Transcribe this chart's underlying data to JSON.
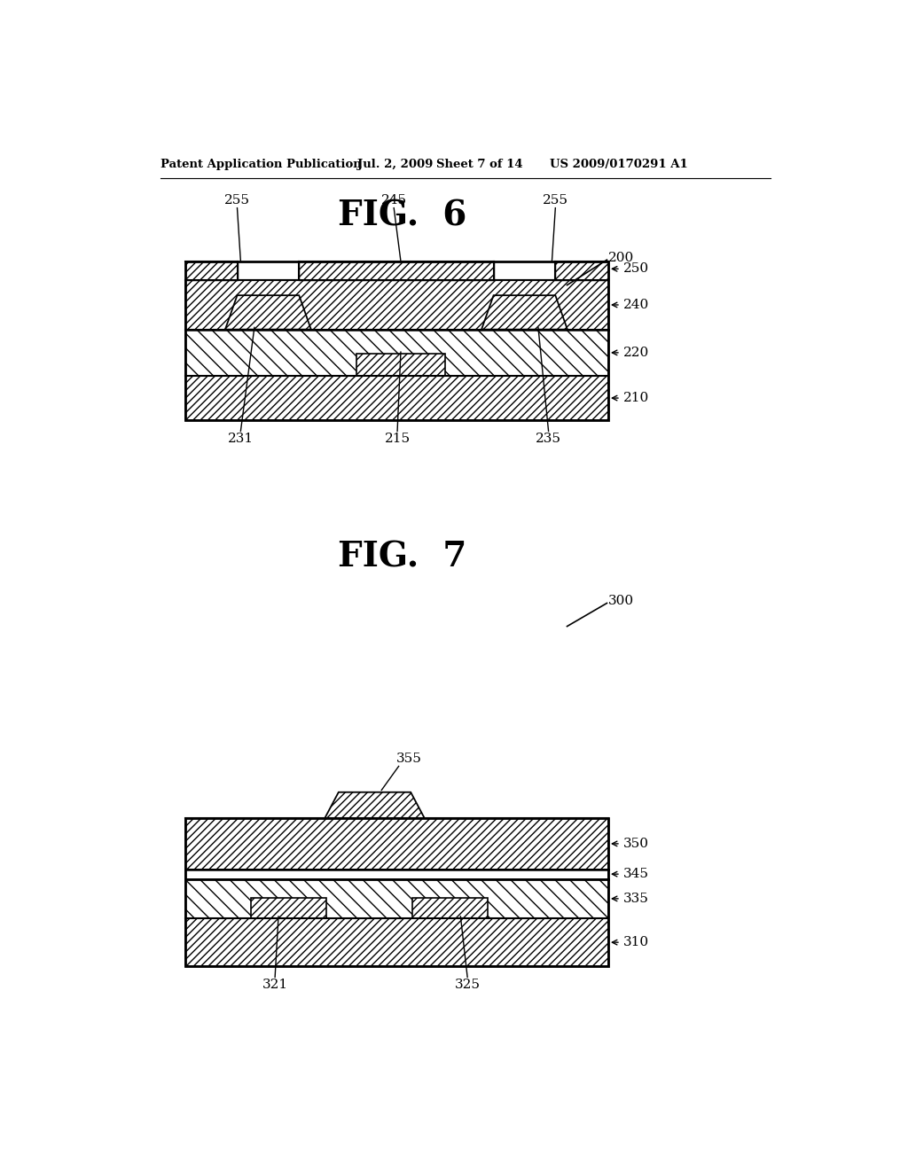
{
  "bg_color": "#ffffff",
  "header_text": "Patent Application Publication",
  "header_date": "Jul. 2, 2009",
  "header_sheet": "Sheet 7 of 14",
  "header_patent": "US 2009/0170291 A1",
  "fig6_title": "FIG.  6",
  "fig7_title": "FIG.  7",
  "fig6_label": "200",
  "fig7_label": "300",
  "fig6_labels_top": [
    "255",
    "245",
    "255"
  ],
  "fig6_labels_right": [
    "250",
    "240",
    "220",
    "210"
  ],
  "fig6_labels_bottom": [
    "231",
    "215",
    "235"
  ],
  "fig7_labels_top": [
    "355"
  ],
  "fig7_labels_right": [
    "350",
    "345",
    "335",
    "310"
  ],
  "fig7_labels_bottom": [
    "321",
    "325"
  ]
}
